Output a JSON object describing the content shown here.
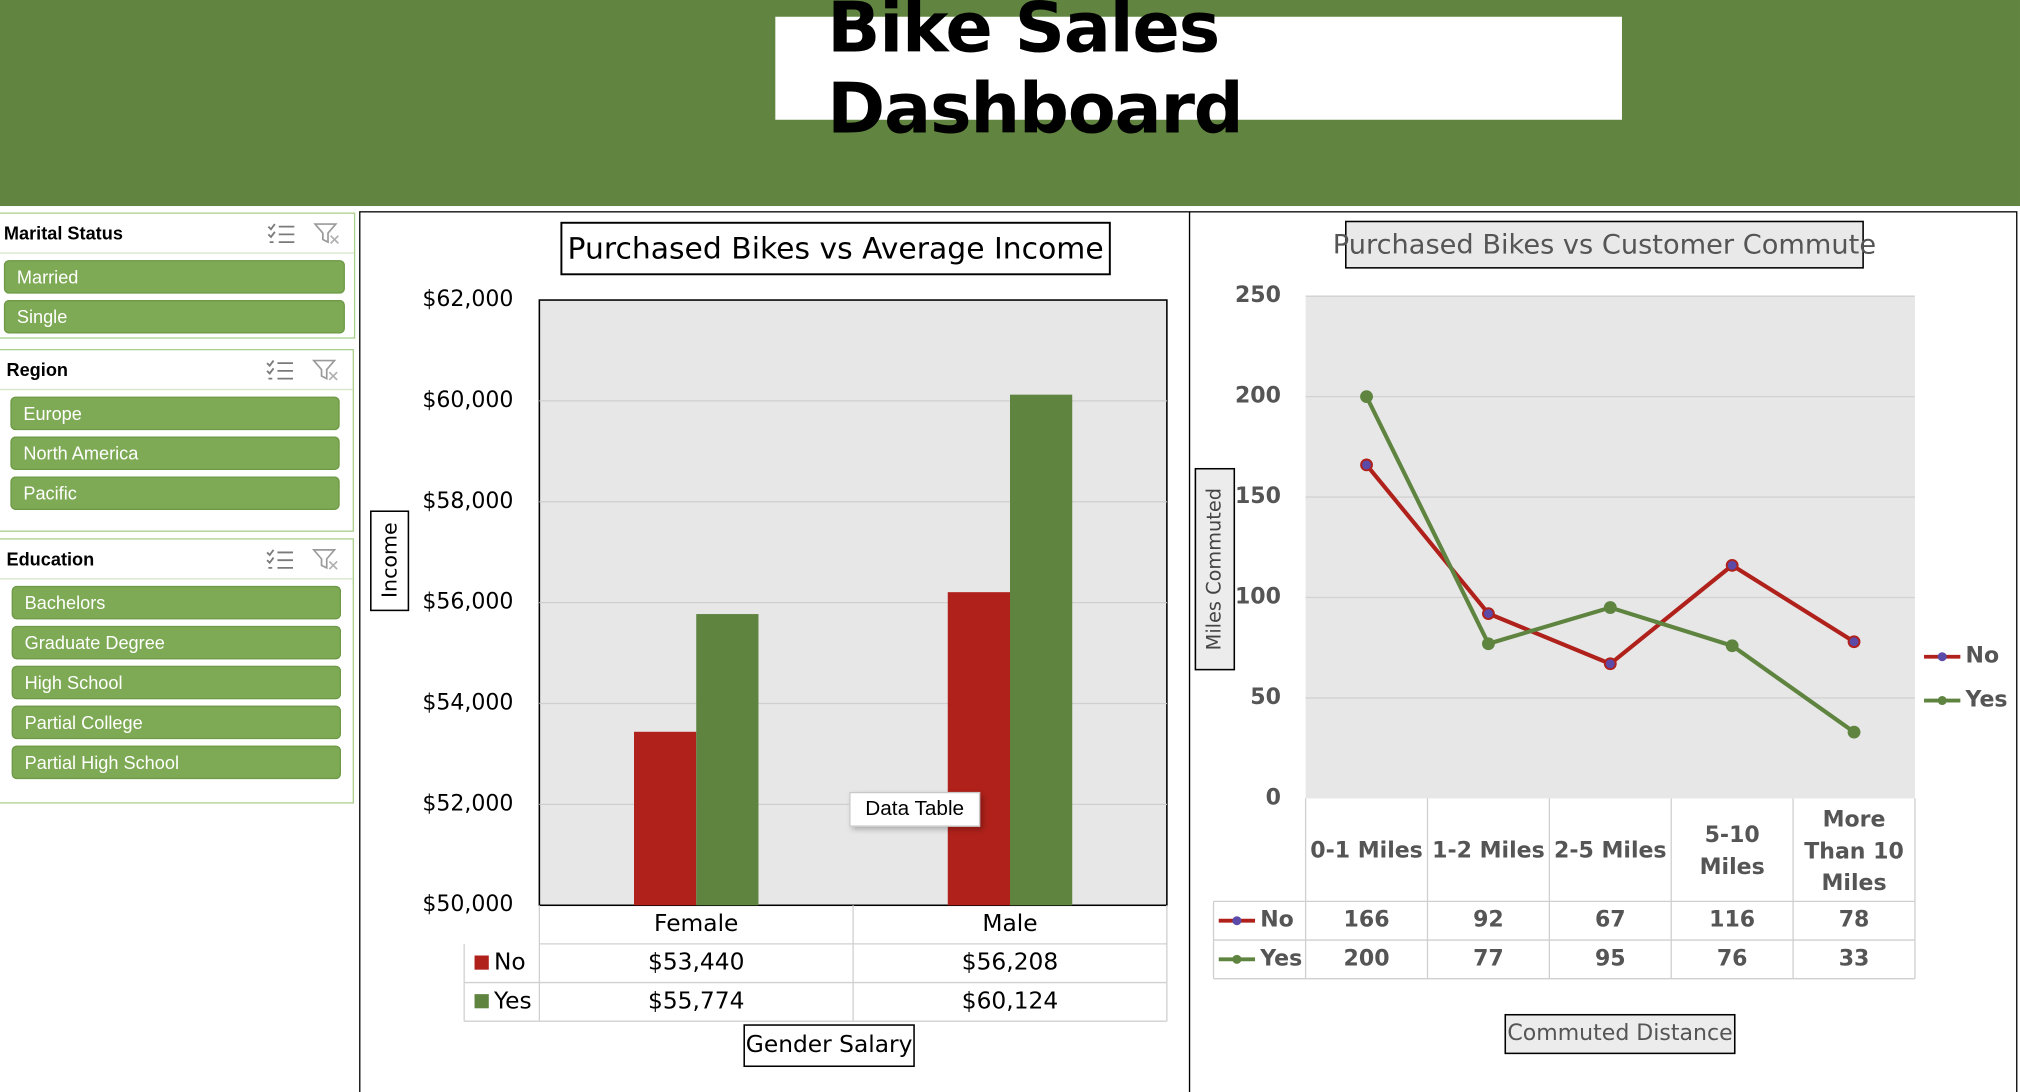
{
  "header": {
    "title": "Bike Sales Dashboard",
    "color": "#618541"
  },
  "slicers": [
    {
      "title": "Marital Status",
      "items": [
        "Married",
        "Single"
      ]
    },
    {
      "title": "Region",
      "items": [
        "Europe",
        "North America",
        "Pacific"
      ]
    },
    {
      "title": "Education",
      "items": [
        "Bachelors",
        "Graduate Degree",
        "High School",
        "Partial College",
        "Partial High School"
      ]
    }
  ],
  "tooltip": "Data Table",
  "chart_data": [
    {
      "type": "bar",
      "title": "Purchased Bikes vs Average Income",
      "xlabel": "Gender Salary",
      "ylabel": "Income",
      "categories": [
        "Female",
        "Male"
      ],
      "series": [
        {
          "name": "No",
          "values": [
            53440,
            56208
          ],
          "labels": [
            "$53,440",
            "$56,208"
          ],
          "color": "#b0211b"
        },
        {
          "name": "Yes",
          "values": [
            55774,
            60124
          ],
          "labels": [
            "$55,774",
            "$60,124"
          ],
          "color": "#5e8440"
        }
      ],
      "ylim": [
        50000,
        62000
      ],
      "yticks": [
        "$50,000",
        "$52,000",
        "$54,000",
        "$56,000",
        "$58,000",
        "$60,000",
        "$62,000"
      ],
      "grid": true,
      "legend": "data-table"
    },
    {
      "type": "line",
      "title": "Purchased Bikes vs Customer Commute",
      "xlabel": "Commuted Distance",
      "ylabel": "Miles Commuted",
      "categories": [
        "0-1 Miles",
        "1-2 Miles",
        "2-5 Miles",
        "5-10 Miles",
        "More Than 10 Miles"
      ],
      "series": [
        {
          "name": "No",
          "values": [
            166,
            92,
            67,
            116,
            78
          ],
          "color": "#b0211b"
        },
        {
          "name": "Yes",
          "values": [
            200,
            77,
            95,
            76,
            33
          ],
          "color": "#5e8440"
        }
      ],
      "ylim": [
        0,
        250
      ],
      "yticks": [
        "0",
        "50",
        "100",
        "150",
        "200",
        "250"
      ],
      "grid": true,
      "legend": "right"
    }
  ]
}
